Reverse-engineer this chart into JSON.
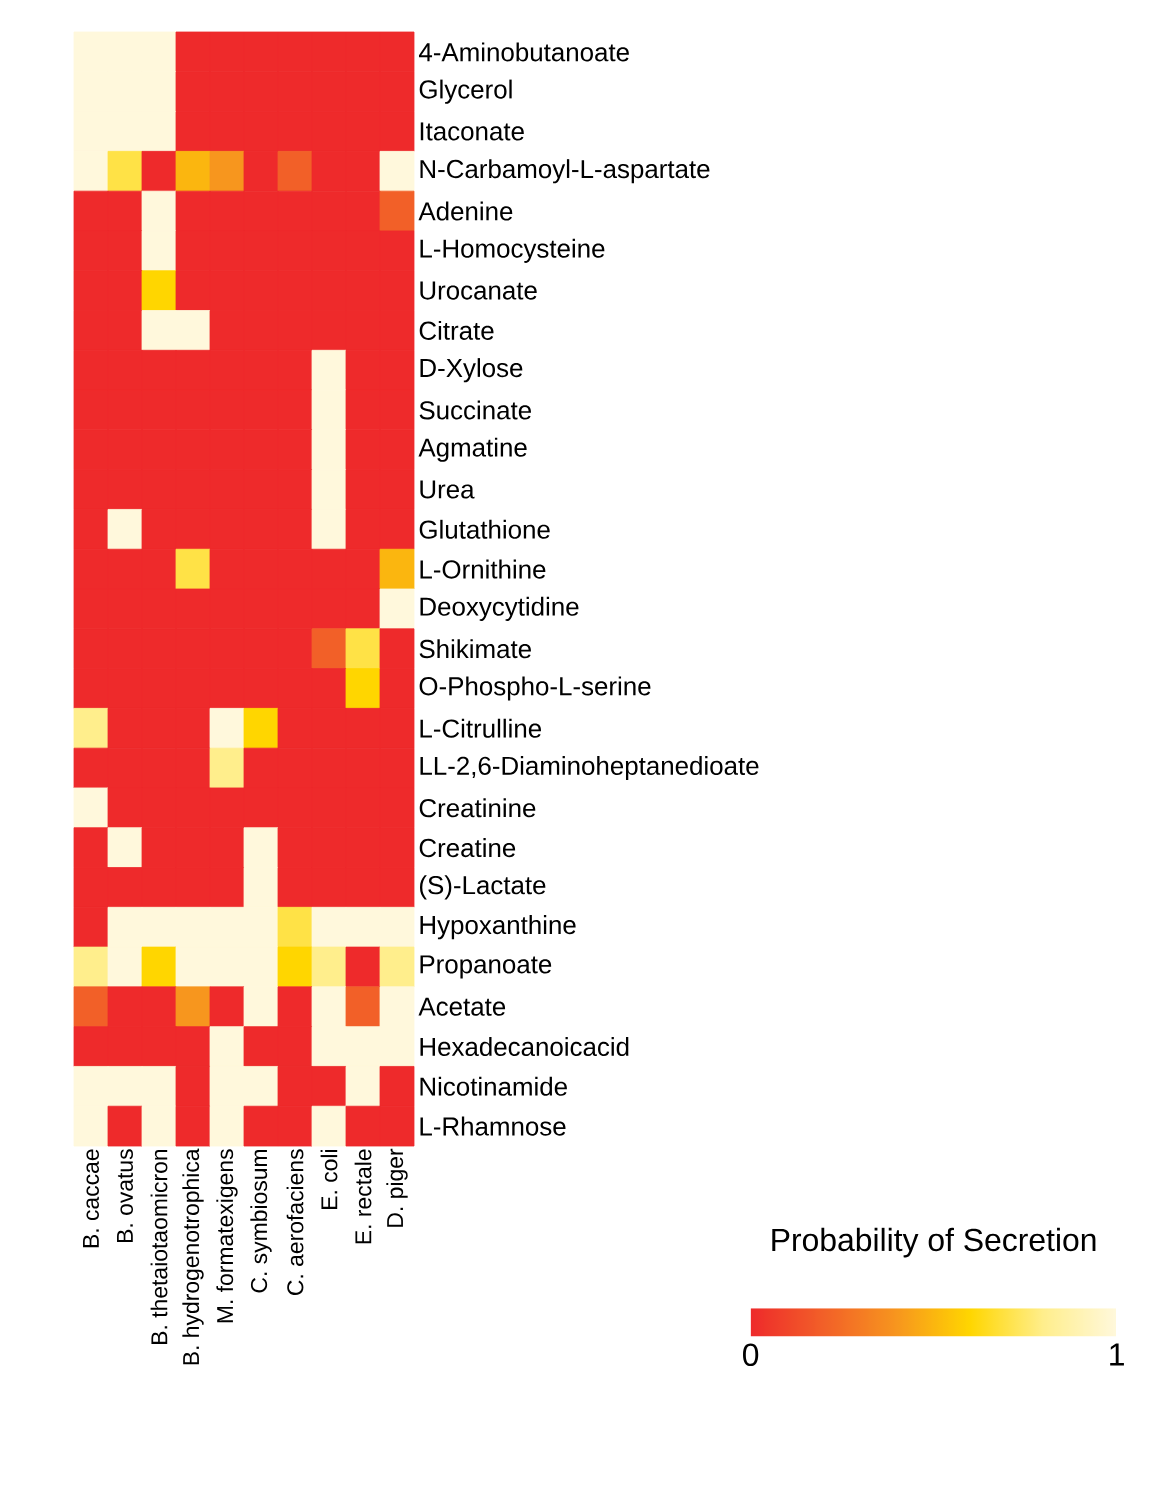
{
  "chart_data": {
    "type": "heatmap",
    "clabel": "Probability of Secretion",
    "categories": [
      "B. caccae",
      "B. ovatus",
      "B. thetaiotaomicron",
      "B. hydrogenotrophica",
      "M. formatexigens",
      "C. symbiosum",
      "C. aerofaciens",
      "E. coli",
      "E. rectale",
      "D. piger"
    ],
    "y_categories": [
      "4-Aminobutanoate",
      "Glycerol",
      "Itaconate",
      "N-Carbamoyl-L-aspartate",
      "Adenine",
      "L-Homocysteine",
      "Urocanate",
      "Citrate",
      "D-Xylose",
      "Succinate",
      "Agmatine",
      "Urea",
      "Glutathione",
      "L-Ornithine",
      "Deoxycytidine",
      "Shikimate",
      "O-Phospho-L-serine",
      "L-Citrulline",
      "LL-2,6-Diaminoheptanedioate",
      "Creatinine",
      "Creatine",
      "(S)-Lactate",
      "Hypoxanthine",
      "Propanoate",
      "Acetate",
      "Hexadecanoicacid",
      "Nicotinamide",
      "L-Rhamnose"
    ],
    "cells": [
      [
        1,
        1,
        1,
        0,
        0,
        0,
        0,
        0,
        0,
        0
      ],
      [
        1,
        1,
        1,
        0,
        0,
        0,
        0,
        0,
        0,
        0
      ],
      [
        1,
        1,
        1,
        0,
        0,
        0,
        0,
        0,
        0,
        0
      ],
      [
        1,
        0.7,
        0,
        0.5,
        0.4,
        0,
        0.2,
        0,
        0,
        1
      ],
      [
        0,
        0,
        1,
        0,
        0,
        0,
        0,
        0,
        0,
        0.2
      ],
      [
        0,
        0,
        1,
        0,
        0,
        0,
        0,
        0,
        0,
        0
      ],
      [
        0,
        0,
        0.6,
        0,
        0,
        0,
        0,
        0,
        0,
        0
      ],
      [
        0,
        0,
        1,
        1,
        0,
        0,
        0,
        0,
        0,
        0
      ],
      [
        0,
        0,
        0,
        0,
        0,
        0,
        0,
        1,
        0,
        0
      ],
      [
        0,
        0,
        0,
        0,
        0,
        0,
        0,
        1,
        0,
        0
      ],
      [
        0,
        0,
        0,
        0,
        0,
        0,
        0,
        1,
        0,
        0
      ],
      [
        0,
        0,
        0,
        0,
        0,
        0,
        0,
        1,
        0,
        0
      ],
      [
        0,
        1,
        0,
        0,
        0,
        0,
        0,
        1,
        0,
        0
      ],
      [
        0,
        0,
        0,
        0.7,
        0,
        0,
        0,
        0,
        0,
        0.5
      ],
      [
        0,
        0,
        0,
        0,
        0,
        0,
        0,
        0,
        0,
        1
      ],
      [
        0,
        0,
        0,
        0,
        0,
        0,
        0,
        0.2,
        0.7,
        0
      ],
      [
        0,
        0,
        0,
        0,
        0,
        0,
        0,
        0,
        0.6,
        0
      ],
      [
        0.8,
        0,
        0,
        0,
        1,
        0.6,
        0,
        0,
        0,
        0
      ],
      [
        0,
        0,
        0,
        0,
        0.8,
        0,
        0,
        0,
        0,
        0
      ],
      [
        1,
        0,
        0,
        0,
        0,
        0,
        0,
        0,
        0,
        0
      ],
      [
        0,
        1,
        0,
        0,
        0,
        1,
        0,
        0,
        0,
        0
      ],
      [
        0,
        0,
        0,
        0,
        0,
        1,
        0,
        0,
        0,
        0
      ],
      [
        0,
        1,
        1,
        1,
        1,
        1,
        0.7,
        1,
        1,
        1
      ],
      [
        0.8,
        1,
        0.6,
        1,
        1,
        1,
        0.6,
        0.8,
        0,
        0.8
      ],
      [
        0.2,
        0,
        0,
        0.4,
        0,
        1,
        0,
        1,
        0.2,
        1
      ],
      [
        0,
        0,
        0,
        0,
        1,
        0,
        0,
        1,
        1,
        1
      ],
      [
        1,
        1,
        1,
        0,
        1,
        1,
        0,
        0,
        1,
        0
      ],
      [
        1,
        0,
        1,
        0,
        1,
        0,
        0,
        1,
        0,
        0
      ]
    ],
    "clim": [
      0,
      1
    ],
    "cticks": [
      0,
      1
    ]
  }
}
